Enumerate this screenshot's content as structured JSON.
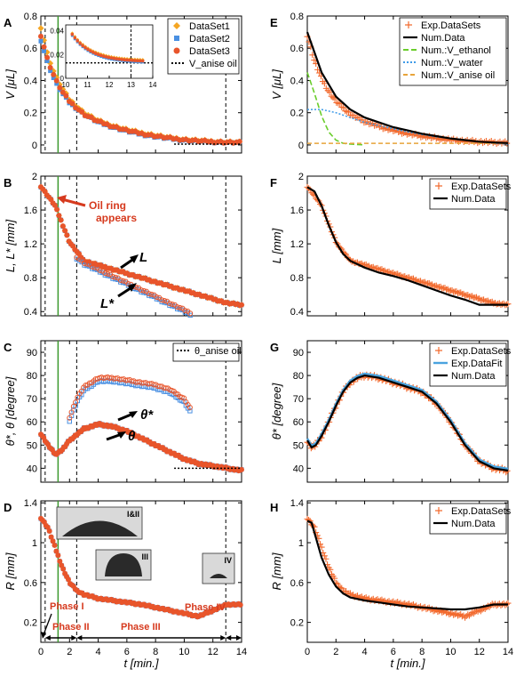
{
  "colors": {
    "dataset1": "#F5A623",
    "dataset2": "#4A90E2",
    "dataset3": "#E8552B",
    "numdata": "#000000",
    "exp": "#F26A2E",
    "ethanol": "#6ACD2C",
    "water": "#3E9BE8",
    "anise": "#E8A43A",
    "fit": "#4AA3DF",
    "phase_line": "#3C9A2E",
    "annot_red": "#D63A1E"
  },
  "xaxis": {
    "label": "t  [min.]",
    "ticks": [
      0,
      2,
      4,
      6,
      8,
      10,
      12,
      14
    ],
    "range": [
      0,
      14
    ]
  },
  "chart_data": [
    {
      "panel": "A",
      "type": "scatter",
      "ylabel": "V [μL]",
      "ylim": [
        -0.05,
        0.8
      ],
      "yticks": [
        "0",
        "0.2",
        "0.4",
        "0.6",
        "0.8"
      ],
      "legend": [
        "DataSet1",
        "DataSet2",
        "DataSet3",
        "V_anise oil"
      ],
      "inset": {
        "xticks": [
          "10",
          "11",
          "12",
          "13",
          "14"
        ],
        "yticks": [
          "0",
          "0.02",
          "0.04"
        ]
      },
      "series": [
        {
          "name": "DataSet1",
          "x": [
            0,
            0.5,
            1,
            1.5,
            2,
            3,
            4,
            5,
            6,
            7,
            8,
            9,
            10,
            11,
            12,
            13,
            14
          ],
          "y": [
            0.73,
            0.55,
            0.43,
            0.35,
            0.28,
            0.2,
            0.15,
            0.12,
            0.095,
            0.075,
            0.06,
            0.045,
            0.035,
            0.028,
            0.022,
            0.018,
            0.015
          ]
        },
        {
          "name": "DataSet2",
          "x": [
            0,
            0.5,
            1,
            1.5,
            2,
            3,
            4,
            5,
            6,
            7,
            8,
            9,
            10,
            11,
            12,
            13,
            14
          ],
          "y": [
            0.65,
            0.5,
            0.39,
            0.32,
            0.26,
            0.19,
            0.14,
            0.11,
            0.085,
            0.065,
            0.05,
            0.038,
            0.028,
            0.022,
            0.018,
            0.015,
            0.014
          ]
        },
        {
          "name": "DataSet3",
          "x": [
            0,
            0.5,
            1,
            1.5,
            2,
            3,
            4,
            5,
            6,
            7,
            8,
            9,
            10,
            11,
            12,
            13,
            14
          ],
          "y": [
            0.68,
            0.52,
            0.41,
            0.33,
            0.27,
            0.19,
            0.145,
            0.115,
            0.09,
            0.07,
            0.055,
            0.042,
            0.032,
            0.025,
            0.02,
            0.016,
            0.015
          ]
        }
      ]
    },
    {
      "panel": "B",
      "type": "scatter",
      "ylabel": "L, L* [mm]",
      "ylim": [
        0.35,
        2.0
      ],
      "yticks": [
        "0.4",
        "0.8",
        "1.2",
        "1.6",
        "2"
      ],
      "annotations": [
        "Oil ring appears",
        "L",
        "L*"
      ],
      "series": [
        {
          "name": "L",
          "x": [
            0,
            1,
            2,
            3,
            4,
            5,
            6,
            7,
            8,
            9,
            10,
            11,
            12,
            13,
            14
          ],
          "y": [
            1.88,
            1.65,
            1.22,
            1.0,
            0.95,
            0.9,
            0.85,
            0.8,
            0.75,
            0.7,
            0.65,
            0.6,
            0.55,
            0.5,
            0.48
          ]
        },
        {
          "name": "L*",
          "x": [
            2.5,
            3,
            4,
            5,
            6,
            7,
            8,
            9,
            10,
            10.5
          ],
          "y": [
            1.05,
            0.98,
            0.9,
            0.82,
            0.74,
            0.66,
            0.58,
            0.5,
            0.42,
            0.38
          ]
        }
      ]
    },
    {
      "panel": "C",
      "type": "scatter",
      "ylabel": "θ*, θ [degree]",
      "ylim": [
        34,
        95
      ],
      "yticks": [
        "40",
        "50",
        "60",
        "70",
        "80",
        "90"
      ],
      "legend": [
        "θ_anise oil"
      ],
      "annotations": [
        "θ*",
        "θ"
      ],
      "series": [
        {
          "name": "θ",
          "x": [
            0,
            0.5,
            1,
            1.5,
            2,
            3,
            4,
            5,
            6,
            7,
            8,
            9,
            10,
            11,
            12,
            13,
            14
          ],
          "y": [
            55,
            50,
            46,
            48,
            52,
            57,
            59,
            58,
            56,
            53,
            50,
            47,
            44,
            42,
            41,
            40,
            39
          ]
        },
        {
          "name": "θ*",
          "x": [
            2,
            2.5,
            3,
            4,
            5,
            6,
            7,
            8,
            9,
            10,
            10.5
          ],
          "y": [
            62,
            70,
            75,
            79,
            79,
            78,
            77,
            76,
            74,
            70,
            65
          ]
        }
      ]
    },
    {
      "panel": "D",
      "type": "scatter",
      "ylabel": "R [mm]",
      "ylim": [
        0,
        1.42
      ],
      "yticks": [
        "0.2",
        "0.6",
        "1",
        "1.4"
      ],
      "phases": [
        "Phase I",
        "Phase II",
        "Phase III",
        "Phase IV"
      ],
      "insets": [
        "I&II",
        "III",
        "IV"
      ],
      "series": [
        {
          "name": "R",
          "x": [
            0,
            0.5,
            1,
            1.5,
            2,
            2.5,
            3,
            4,
            5,
            6,
            7,
            8,
            9,
            10,
            11,
            12,
            13,
            14
          ],
          "y": [
            1.25,
            1.15,
            0.95,
            0.75,
            0.6,
            0.52,
            0.48,
            0.44,
            0.42,
            0.4,
            0.38,
            0.35,
            0.32,
            0.29,
            0.26,
            0.32,
            0.38,
            0.38
          ]
        }
      ]
    },
    {
      "panel": "E",
      "type": "line",
      "ylabel": "V [μL]",
      "ylim": [
        -0.05,
        0.8
      ],
      "yticks": [
        "0",
        "0.2",
        "0.4",
        "0.6",
        "0.8"
      ],
      "legend": [
        "Exp.DataSets",
        "Num.Data",
        "Num.:V_ethanol",
        "Num.:V_water",
        "Num.:V_anise oil"
      ],
      "series": [
        {
          "name": "Num.Data",
          "x": [
            0,
            1,
            2,
            3,
            4,
            5,
            6,
            7,
            8,
            9,
            10,
            11,
            12,
            13,
            14
          ],
          "y": [
            0.7,
            0.45,
            0.3,
            0.22,
            0.17,
            0.14,
            0.11,
            0.09,
            0.07,
            0.055,
            0.04,
            0.03,
            0.02,
            0.015,
            0.012
          ]
        },
        {
          "name": "Num.:V_ethanol",
          "x": [
            0,
            0.5,
            1,
            1.5,
            2,
            2.5,
            3,
            4
          ],
          "y": [
            0.45,
            0.32,
            0.18,
            0.08,
            0.03,
            0.01,
            0.005,
            0
          ]
        },
        {
          "name": "Num.:V_water",
          "x": [
            0,
            1,
            2,
            3,
            4,
            5,
            6,
            7,
            8,
            9,
            10,
            11,
            12,
            13,
            14
          ],
          "y": [
            0.22,
            0.22,
            0.2,
            0.17,
            0.14,
            0.12,
            0.1,
            0.08,
            0.065,
            0.05,
            0.04,
            0.03,
            0.02,
            0.01,
            0.005
          ]
        },
        {
          "name": "Num.:V_anise oil",
          "x": [
            0,
            14
          ],
          "y": [
            0.01,
            0.01
          ]
        }
      ]
    },
    {
      "panel": "F",
      "type": "line",
      "ylabel": "L [mm]",
      "ylim": [
        0.35,
        2.0
      ],
      "yticks": [
        "0.4",
        "0.8",
        "1.2",
        "1.6",
        "2"
      ],
      "legend": [
        "Exp.DataSets",
        "Num.Data"
      ],
      "series": [
        {
          "name": "Num.Data",
          "x": [
            0,
            0.5,
            1,
            1.5,
            2,
            2.5,
            3,
            4,
            5,
            6,
            7,
            8,
            9,
            10,
            11,
            12,
            13,
            14
          ],
          "y": [
            1.87,
            1.82,
            1.65,
            1.42,
            1.22,
            1.08,
            1.0,
            0.92,
            0.86,
            0.82,
            0.77,
            0.71,
            0.65,
            0.59,
            0.54,
            0.48,
            0.48,
            0.48
          ]
        }
      ]
    },
    {
      "panel": "G",
      "type": "line",
      "ylabel": "θ* [degree]",
      "ylim": [
        34,
        95
      ],
      "yticks": [
        "40",
        "50",
        "60",
        "70",
        "80",
        "90"
      ],
      "legend": [
        "Exp.DataSets",
        "Exp.DataFit",
        "Num.Data"
      ],
      "series": [
        {
          "name": "Num.Data",
          "x": [
            0,
            0.3,
            0.6,
            1,
            1.5,
            2,
            2.5,
            3,
            3.5,
            4,
            5,
            6,
            7,
            8,
            9,
            10,
            11,
            12,
            13,
            14
          ],
          "y": [
            52,
            49,
            50,
            54,
            60,
            67,
            73,
            77,
            79,
            80,
            79,
            77,
            75,
            73,
            68,
            60,
            50,
            43,
            40,
            39
          ]
        }
      ]
    },
    {
      "panel": "H",
      "type": "line",
      "ylabel": "R [mm]",
      "ylim": [
        0,
        1.42
      ],
      "yticks": [
        "0.2",
        "0.6",
        "1",
        "1.4"
      ],
      "legend": [
        "Exp.DataSets",
        "Num.Data"
      ],
      "series": [
        {
          "name": "Num.Data",
          "x": [
            0,
            0.3,
            0.6,
            1,
            1.5,
            2,
            2.5,
            3,
            4,
            5,
            6,
            7,
            8,
            9,
            10,
            11,
            12,
            13,
            14
          ],
          "y": [
            1.22,
            1.2,
            1.05,
            0.85,
            0.68,
            0.56,
            0.49,
            0.45,
            0.42,
            0.4,
            0.38,
            0.36,
            0.35,
            0.34,
            0.33,
            0.33,
            0.35,
            0.38,
            0.38
          ]
        }
      ]
    }
  ]
}
